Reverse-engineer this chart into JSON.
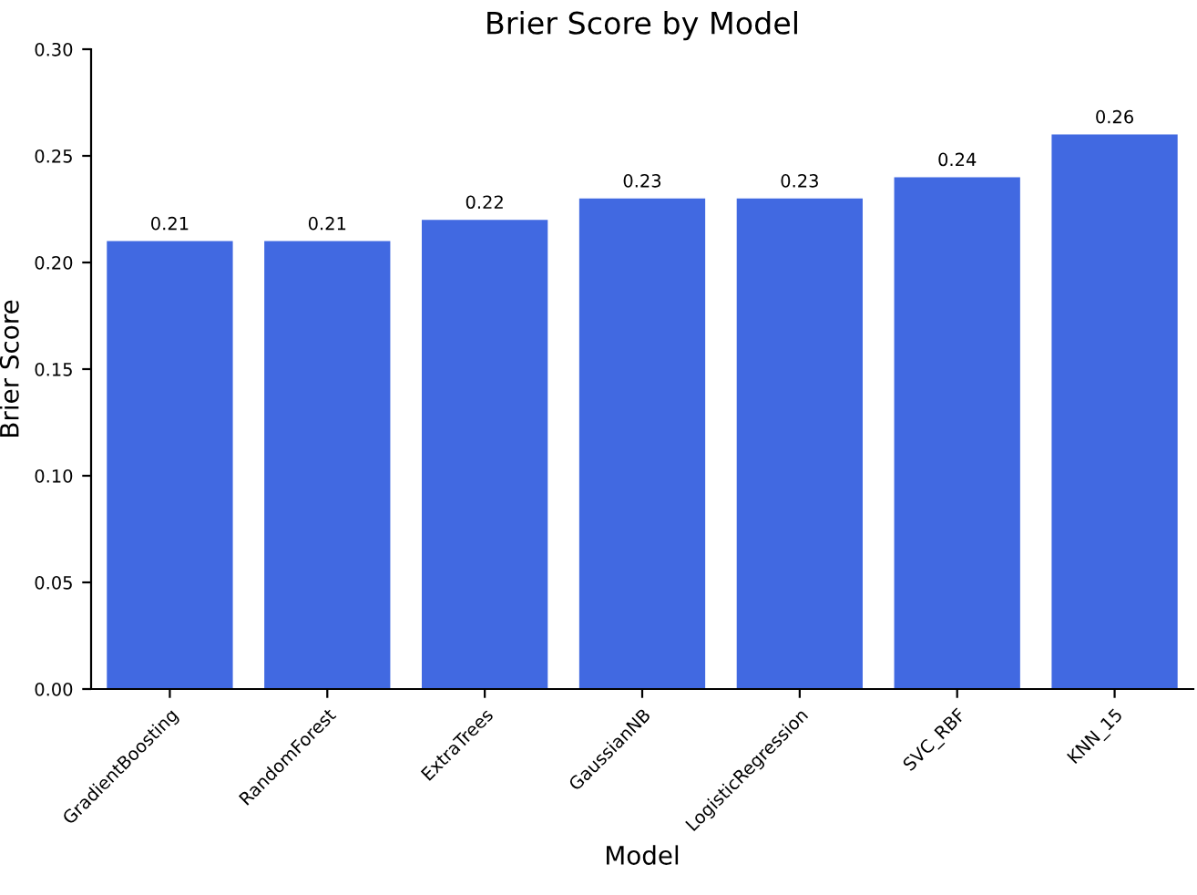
{
  "chart_data": {
    "type": "bar",
    "title": "Brier Score by Model",
    "xlabel": "Model",
    "ylabel": "Brier Score",
    "categories": [
      "GradientBoosting",
      "RandomForest",
      "ExtraTrees",
      "GaussianNB",
      "LogisticRegression",
      "SVC_RBF",
      "KNN_15"
    ],
    "values": [
      0.21,
      0.21,
      0.22,
      0.23,
      0.23,
      0.24,
      0.26
    ],
    "color": "#4169e1",
    "ylim": [
      0,
      0.3
    ],
    "yticks": [
      {
        "value": 0,
        "label": "0.00"
      },
      {
        "value": 0.05,
        "label": "0.05"
      },
      {
        "value": 0.1,
        "label": "0.10"
      },
      {
        "value": 0.15,
        "label": "0.15"
      },
      {
        "value": 0.2,
        "label": "0.20"
      },
      {
        "value": 0.25,
        "label": "0.25"
      },
      {
        "value": 0.3,
        "label": "0.30"
      }
    ],
    "data_labels": true,
    "grid": false,
    "legend": false
  }
}
